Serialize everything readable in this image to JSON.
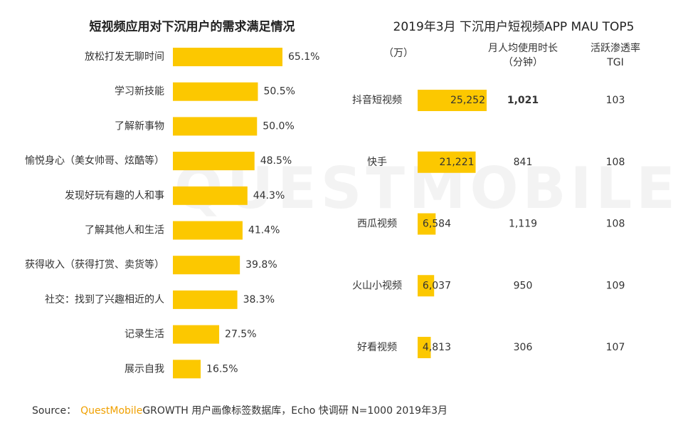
{
  "chart_data": [
    {
      "type": "bar",
      "orientation": "horizontal",
      "title": "短视频应用对下沉用户的需求满足情况",
      "categories": [
        "放松打发无聊时间",
        "学习新技能",
        "了解新事物",
        "愉悦身心（美女帅哥、炫酷等）",
        "发现好玩有趣的人和事",
        "了解其他人和生活",
        "获得收入（获得打赏、卖货等）",
        "社交：找到了兴趣相近的人",
        "记录生活",
        "展示自我"
      ],
      "values": [
        65.1,
        50.5,
        50.0,
        48.5,
        44.3,
        41.4,
        39.8,
        38.3,
        27.5,
        16.5
      ],
      "value_labels": [
        "65.1%",
        "50.5%",
        "50.0%",
        "48.5%",
        "44.3%",
        "41.4%",
        "39.8%",
        "38.3%",
        "27.5%",
        "16.5%"
      ],
      "color": "#fcc800"
    },
    {
      "type": "bar",
      "orientation": "horizontal",
      "title": "2019年3月 下沉用户短视频APP MAU TOP5",
      "unit": "（万）",
      "categories": [
        "抖音短视频",
        "快手",
        "西瓜视频",
        "火山小视频",
        "好看视频"
      ],
      "values": [
        25252,
        21221,
        6584,
        6037,
        4813
      ],
      "value_labels": [
        "25,252",
        "21,221",
        "6,584",
        "6,037",
        "4,813"
      ],
      "color": "#fcc800",
      "columns": [
        {
          "name": [
            "月人均使用时长",
            "（分钟）"
          ],
          "values": [
            1021,
            841,
            1119,
            950,
            306
          ],
          "value_labels": [
            "1,021",
            "841",
            "1,119",
            "950",
            "306"
          ],
          "value_colors": [
            "#d0121b",
            "#222222",
            "#222222",
            "#222222",
            "#222222"
          ]
        },
        {
          "name": [
            "活跃渗透率",
            "TGI"
          ],
          "values": [
            103,
            108,
            108,
            109,
            107
          ],
          "value_colors": [
            "#222222",
            "#222222",
            "#222222",
            "#222222",
            "#222222"
          ]
        }
      ]
    }
  ],
  "watermark": "QUESTMOBILE",
  "source": {
    "label": "Source：",
    "brand": "QuestMobile",
    "text": "GROWTH 用户画像标签数据库，Echo 快调研 N=1000 2019年3月"
  }
}
